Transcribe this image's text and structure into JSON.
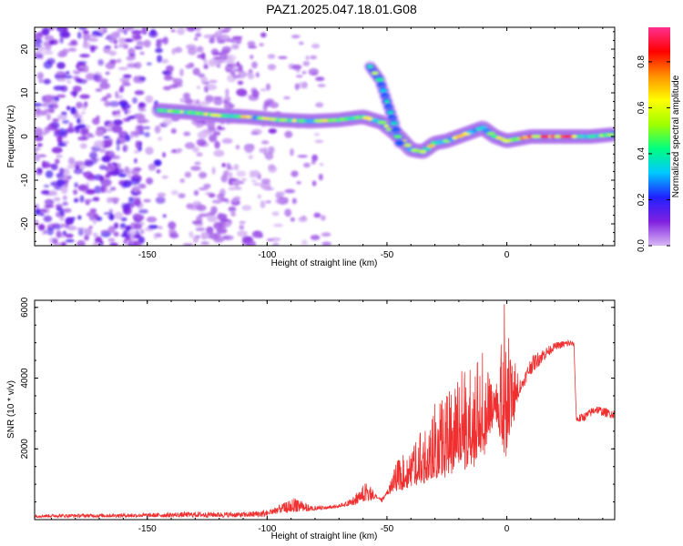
{
  "title": "PAZ1.2025.047.18.01.G08",
  "chart_data": [
    {
      "type": "heatmap",
      "title": "PAZ1.2025.047.18.01.G08",
      "xlabel": "Height of straight line (km)",
      "ylabel": "Frequency (Hz)",
      "xlim": [
        -197,
        45
      ],
      "ylim": [
        -25,
        25
      ],
      "xticks": [
        -150,
        -100,
        -50,
        0
      ],
      "yticks": [
        -20,
        -10,
        0,
        10,
        20
      ],
      "colorbar": {
        "label": "Normalized spectral amplitude",
        "range": [
          0,
          0.95
        ],
        "ticks": [
          0.0,
          0.2,
          0.4,
          0.6,
          0.8
        ],
        "colors": [
          "#d8b8f4",
          "#8020e0",
          "#2020ff",
          "#00c8ff",
          "#00ff80",
          "#a0ff00",
          "#ffff00",
          "#ff9000",
          "#ff0000",
          "#ff3090"
        ]
      },
      "ridges": [
        {
          "name": "main",
          "points": [
            [
              -145,
              6
            ],
            [
              -132,
              5.5
            ],
            [
              -120,
              4.8
            ],
            [
              -108,
              4.5
            ],
            [
              -95,
              3.8
            ],
            [
              -82,
              3.5
            ],
            [
              -70,
              3.8
            ],
            [
              -60,
              4.5
            ],
            [
              -52,
              3.2
            ],
            [
              -45,
              0
            ],
            [
              -40,
              -3
            ],
            [
              -35,
              -3.5
            ],
            [
              -30,
              -1.5
            ],
            [
              -25,
              -1
            ],
            [
              -20,
              0
            ],
            [
              -15,
              1
            ],
            [
              -10,
              2
            ],
            [
              -5,
              0
            ],
            [
              0,
              -1
            ],
            [
              10,
              0
            ],
            [
              20,
              0
            ],
            [
              35,
              0
            ],
            [
              45,
              0.5
            ]
          ]
        },
        {
          "name": "branch",
          "points": [
            [
              -57,
              16
            ],
            [
              -53,
              13
            ],
            [
              -50,
              8
            ],
            [
              -47,
              3
            ],
            [
              -44,
              -3
            ]
          ]
        }
      ]
    },
    {
      "type": "line",
      "xlabel": "Height of straight line (km)",
      "ylabel": "SNR (10 * v/v)",
      "xlim": [
        -197,
        45
      ],
      "ylim": [
        0,
        6200
      ],
      "xticks": [
        -150,
        -100,
        -50,
        0
      ],
      "yticks": [
        2000,
        4000,
        6000
      ],
      "color": "#f03030",
      "envelope": [
        [
          -197,
          130
        ],
        [
          -150,
          160
        ],
        [
          -130,
          200
        ],
        [
          -110,
          190
        ],
        [
          -100,
          260
        ],
        [
          -92,
          500
        ],
        [
          -88,
          650
        ],
        [
          -82,
          400
        ],
        [
          -75,
          380
        ],
        [
          -67,
          500
        ],
        [
          -58,
          1100
        ],
        [
          -52,
          450
        ],
        [
          -45,
          1800
        ],
        [
          -40,
          1900
        ],
        [
          -35,
          2700
        ],
        [
          -30,
          3300
        ],
        [
          -25,
          3500
        ],
        [
          -20,
          4200
        ],
        [
          -15,
          4500
        ],
        [
          -10,
          4800
        ],
        [
          -6,
          3700
        ],
        [
          -3,
          4400
        ],
        [
          -1,
          6200
        ],
        [
          2,
          4800
        ],
        [
          6,
          3900
        ],
        [
          10,
          4600
        ],
        [
          14,
          4800
        ],
        [
          20,
          5000
        ],
        [
          26,
          5100
        ],
        [
          28,
          5000
        ],
        [
          29,
          2900
        ],
        [
          33,
          3000
        ],
        [
          37,
          3200
        ],
        [
          41,
          3100
        ],
        [
          45,
          3050
        ]
      ],
      "floor": [
        [
          -197,
          30
        ],
        [
          -130,
          80
        ],
        [
          -100,
          140
        ],
        [
          -80,
          250
        ],
        [
          -60,
          450
        ],
        [
          -50,
          700
        ],
        [
          -40,
          900
        ],
        [
          -30,
          1100
        ],
        [
          -20,
          1300
        ],
        [
          -10,
          1600
        ],
        [
          -5,
          2800
        ],
        [
          0,
          1500
        ],
        [
          5,
          3500
        ],
        [
          10,
          4100
        ],
        [
          20,
          4800
        ],
        [
          28,
          4900
        ],
        [
          29,
          2850
        ],
        [
          45,
          3000
        ]
      ]
    }
  ]
}
